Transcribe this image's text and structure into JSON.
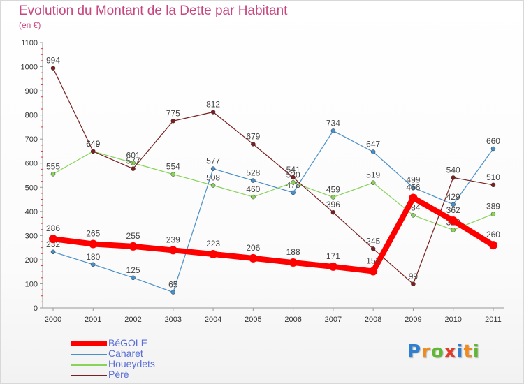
{
  "header": {
    "title": "Evolution du Montant de la Dette par Habitant",
    "unit": "(en €)"
  },
  "chart_data": {
    "type": "line",
    "title": "Evolution du Montant de la Dette par Habitant",
    "ylabel": "(en €)",
    "xlabel": "",
    "ylim": [
      0,
      1100
    ],
    "yticks": [
      "0",
      "100",
      "200",
      "300",
      "400",
      "500",
      "600",
      "700",
      "800",
      "900",
      "1000",
      "1100"
    ],
    "categories": [
      "2000",
      "2001",
      "2002",
      "2003",
      "2004",
      "2005",
      "2006",
      "2007",
      "2008",
      "2009",
      "2010",
      "2011"
    ],
    "grid": false,
    "legend_position": "bottom-left",
    "series": [
      {
        "name": "BéGOLE",
        "values": [
          286,
          265,
          255,
          239,
          223,
          206,
          188,
          171,
          152,
          456,
          362,
          260
        ],
        "color": "#ff0000",
        "emphasis": true
      },
      {
        "name": "Caharet",
        "values": [
          232,
          180,
          125,
          65,
          577,
          528,
          478,
          734,
          647,
          499,
          429,
          660
        ],
        "color": "#4a90c8"
      },
      {
        "name": "Houeydets",
        "values": [
          555,
          649,
          601,
          554,
          508,
          460,
          520,
          459,
          519,
          384,
          323,
          389
        ],
        "color": "#88d45a"
      },
      {
        "name": "Péré",
        "values": [
          994,
          649,
          577,
          775,
          812,
          679,
          541,
          396,
          245,
          99,
          540,
          510
        ],
        "color": "#7a2020"
      }
    ]
  },
  "legend": {
    "items": [
      {
        "label": "BéGOLE"
      },
      {
        "label": "Caharet"
      },
      {
        "label": "Houeydets"
      },
      {
        "label": "Péré"
      }
    ]
  },
  "brand": {
    "letters": [
      "P",
      "r",
      "o",
      "x",
      "i",
      "t",
      "i"
    ],
    "colors": [
      "#2f7fd0",
      "#f08a1c",
      "#5fb832",
      "#e53a2a",
      "#2f7fd0",
      "#f08a1c",
      "#5fb832"
    ]
  }
}
